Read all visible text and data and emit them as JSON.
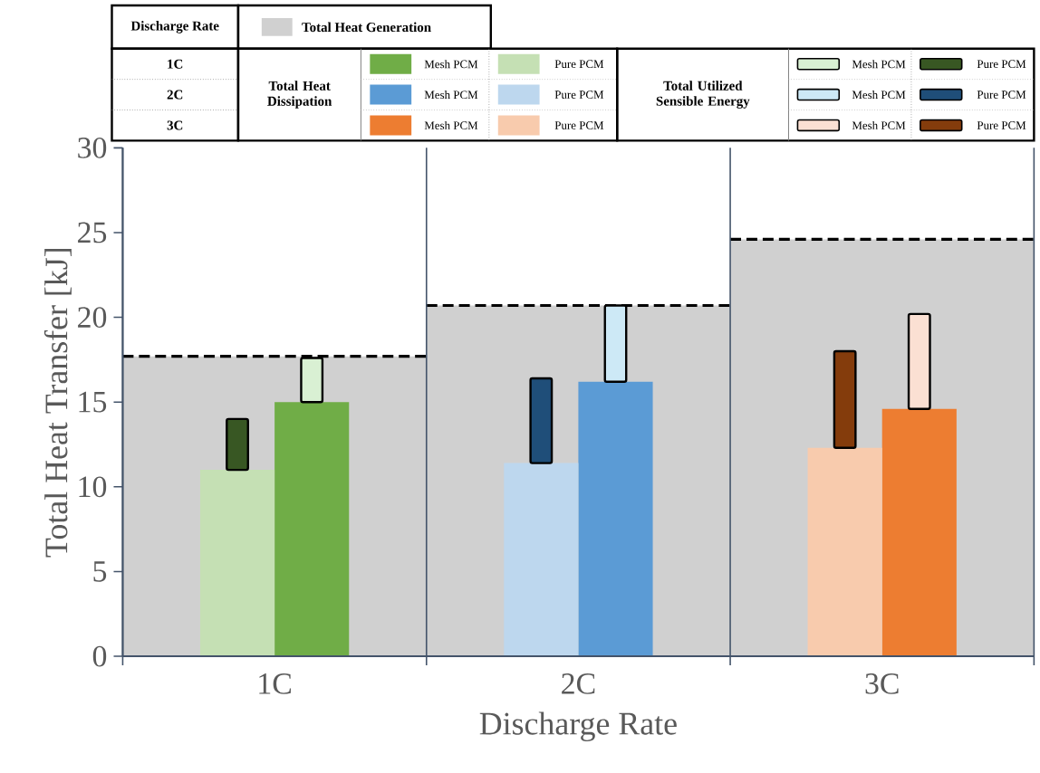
{
  "chart_data": {
    "type": "bar",
    "xlabel": "Discharge Rate",
    "ylabel": "Total Heat Transfer [kJ]",
    "legend_title": "Discharge Rate",
    "legend": "top",
    "grid": "x",
    "categories": [
      "1C",
      "2C",
      "3C"
    ],
    "ylim": [
      0,
      30
    ],
    "yticks": [
      0,
      5,
      10,
      15,
      20,
      25,
      30
    ],
    "annotations": [
      "Total Heat Dissipation",
      "Total Utilized Sensible Energy"
    ],
    "series": [
      {
        "name": "Total Heat Generation",
        "color": "#d0d0d0",
        "line_style": "dashed",
        "values": [
          17.7,
          20.7,
          24.6
        ]
      },
      {
        "name": "Mesh PCM",
        "colors": [
          "#70ad47",
          "#5b9bd5",
          "#ed7d31"
        ],
        "values": [
          15.0,
          16.2,
          14.6
        ]
      },
      {
        "name": "Pure PCM",
        "colors": [
          "#c5e0b4",
          "#bdd7ee",
          "#f8cbad"
        ],
        "values": [
          11.0,
          11.4,
          12.3
        ]
      },
      {
        "name": "Mesh PCM",
        "colors": [
          "#d9f0d3",
          "#cde9f6",
          "#fbe0d3"
        ],
        "base": [
          15.0,
          16.2,
          14.6
        ],
        "values": [
          2.6,
          4.5,
          5.6
        ]
      },
      {
        "name": "Pure PCM",
        "colors": [
          "#385723",
          "#1f4e79",
          "#843c0c"
        ],
        "base": [
          11.0,
          11.4,
          12.3
        ],
        "values": [
          3.0,
          5.0,
          5.7
        ]
      }
    ]
  }
}
